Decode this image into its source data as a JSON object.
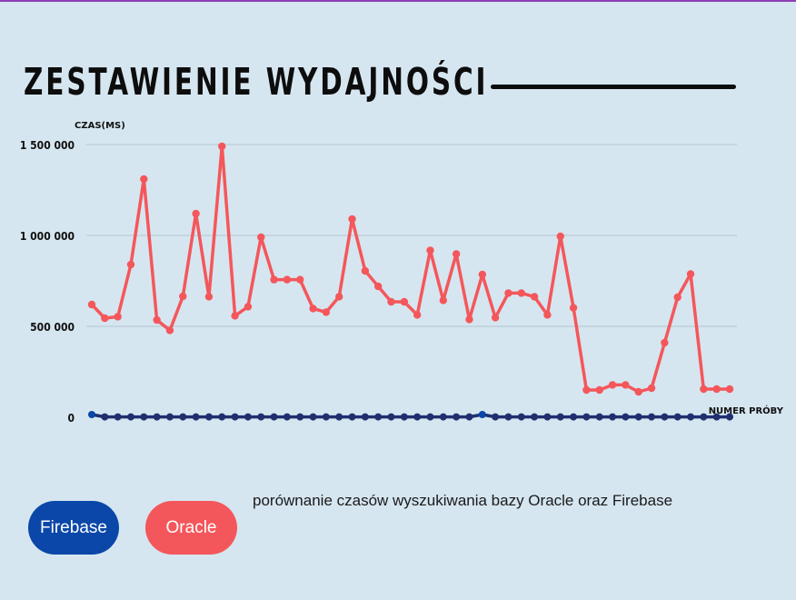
{
  "title": "ZESTAWIENIE WYDAJNOŚCI",
  "caption": "porównanie czasów wyszukiwania bazy Oracle oraz Firebase",
  "legend": {
    "firebase": "Firebase",
    "oracle": "Oracle"
  },
  "colors": {
    "background": "#d6e6f0",
    "oracle": "#f4575b",
    "firebase": "#0a47a8",
    "firebase_line": "#1f2f6e",
    "grid": "#b9ccd9"
  },
  "chart_data": {
    "type": "line",
    "ylabel": "CZAS(MS)",
    "xlabel": "NUMER PRÓBY",
    "ylim": [
      0,
      1500000
    ],
    "yticks": [
      {
        "value": 0,
        "label": "0"
      },
      {
        "value": 500000,
        "label": "500 000"
      },
      {
        "value": 1000000,
        "label": "1 000 000"
      },
      {
        "value": 1500000,
        "label": "1 500 000"
      }
    ],
    "grid": true,
    "x": [
      1,
      2,
      3,
      4,
      5,
      6,
      7,
      8,
      9,
      10,
      11,
      12,
      13,
      14,
      15,
      16,
      17,
      18,
      19,
      20,
      21,
      22,
      23,
      24,
      25,
      26,
      27,
      28,
      29,
      30,
      31,
      32,
      33,
      34,
      35,
      36,
      37,
      38,
      39,
      40,
      41,
      42,
      43,
      44,
      45,
      46,
      47,
      48,
      49,
      50
    ],
    "series": [
      {
        "name": "Oracle",
        "values": [
          620000,
          545000,
          553000,
          840000,
          1310000,
          535000,
          478000,
          665000,
          1120000,
          663000,
          1490000,
          558000,
          608000,
          990000,
          757000,
          757000,
          757000,
          598000,
          578000,
          663000,
          1090000,
          805000,
          720000,
          635000,
          635000,
          563000,
          918000,
          643000,
          898000,
          538000,
          785000,
          548000,
          683000,
          683000,
          663000,
          563000,
          995000,
          602000,
          150000,
          150000,
          178000,
          178000,
          140000,
          160000,
          410000,
          660000,
          788000,
          155000,
          155000,
          155000
        ]
      },
      {
        "name": "Firebase",
        "values": [
          15000,
          2000,
          2000,
          2000,
          2000,
          2000,
          2000,
          2000,
          2000,
          2000,
          2000,
          2000,
          2000,
          2000,
          2000,
          2000,
          2000,
          2000,
          2000,
          2000,
          2000,
          2000,
          2000,
          2000,
          2000,
          2000,
          2000,
          2000,
          2000,
          2000,
          15000,
          2000,
          2000,
          2000,
          2000,
          2000,
          2000,
          2000,
          2000,
          2000,
          2000,
          2000,
          2000,
          2000,
          2000,
          2000,
          2000,
          2000,
          2000,
          2000
        ]
      }
    ]
  }
}
